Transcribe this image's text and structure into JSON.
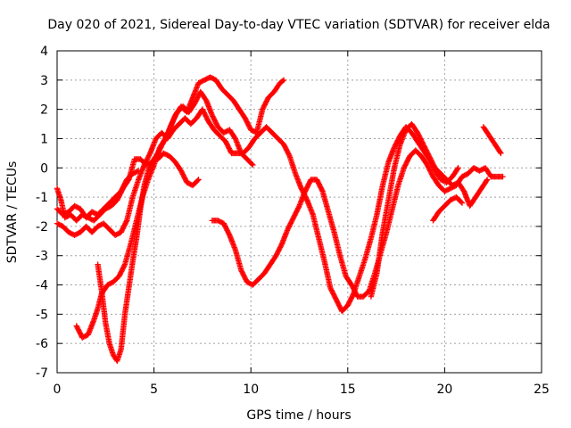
{
  "chart_data": {
    "type": "scatter",
    "title": "Day 020 of 2021, Sidereal Day-to-day VTEC variation (SDTVAR) for receiver elda",
    "xlabel": "GPS time / hours",
    "ylabel": "SDTVAR / TECUs",
    "xlim": [
      0,
      25
    ],
    "ylim": [
      -7,
      4
    ],
    "xticks": [
      "0",
      "5",
      "10",
      "15",
      "20",
      "25"
    ],
    "yticks": [
      "4",
      "3",
      "2",
      "1",
      "0",
      "-1",
      "-2",
      "-3",
      "-4",
      "-5",
      "-6",
      "-7"
    ],
    "grid": true,
    "marker": "plus",
    "color": "#ff0000",
    "series": [
      {
        "points": [
          [
            0,
            -0.7
          ],
          [
            0.2,
            -1.1
          ],
          [
            0.4,
            -1.7
          ],
          [
            0.7,
            -1.6
          ],
          [
            1.0,
            -1.8
          ],
          [
            1.3,
            -1.6
          ],
          [
            1.6,
            -1.7
          ],
          [
            1.9,
            -1.8
          ],
          [
            2.2,
            -1.6
          ],
          [
            2.5,
            -1.4
          ],
          [
            2.8,
            -1.3
          ],
          [
            3.1,
            -1.1
          ],
          [
            3.4,
            -0.7
          ],
          [
            3.7,
            -0.4
          ],
          [
            4.0,
            0.3
          ],
          [
            4.3,
            0.3
          ],
          [
            4.6,
            0.1
          ],
          [
            4.9,
            0.2
          ],
          [
            5.2,
            0.3
          ],
          [
            5.5,
            0.5
          ],
          [
            5.8,
            0.4
          ],
          [
            6.1,
            0.2
          ],
          [
            6.4,
            -0.1
          ],
          [
            6.7,
            -0.5
          ],
          [
            7.0,
            -0.6
          ],
          [
            7.3,
            -0.4
          ]
        ]
      },
      {
        "points": [
          [
            0,
            -1.9
          ],
          [
            0.3,
            -2.0
          ],
          [
            0.6,
            -2.2
          ],
          [
            0.9,
            -2.3
          ],
          [
            1.2,
            -2.2
          ],
          [
            1.5,
            -2.0
          ],
          [
            1.8,
            -2.2
          ],
          [
            2.1,
            -2.0
          ],
          [
            2.4,
            -1.9
          ],
          [
            2.7,
            -2.1
          ],
          [
            3.0,
            -2.3
          ],
          [
            3.3,
            -2.2
          ],
          [
            3.6,
            -1.8
          ],
          [
            3.9,
            -1.0
          ],
          [
            4.2,
            -0.4
          ],
          [
            4.5,
            0.1
          ],
          [
            4.8,
            0.5
          ],
          [
            5.1,
            1.0
          ],
          [
            5.4,
            1.2
          ],
          [
            5.7,
            1.0
          ],
          [
            6.0,
            1.3
          ],
          [
            6.3,
            1.5
          ],
          [
            6.6,
            1.7
          ],
          [
            6.9,
            1.5
          ],
          [
            7.2,
            1.7
          ],
          [
            7.5,
            2.0
          ],
          [
            7.8,
            1.6
          ],
          [
            8.1,
            1.3
          ],
          [
            8.4,
            1.1
          ],
          [
            8.7,
            0.9
          ],
          [
            9.0,
            0.5
          ],
          [
            9.3,
            0.5
          ],
          [
            9.6,
            0.5
          ],
          [
            9.9,
            0.7
          ],
          [
            10.2,
            1.0
          ],
          [
            10.5,
            1.2
          ],
          [
            10.8,
            1.4
          ],
          [
            11.1,
            1.2
          ],
          [
            11.4,
            1.0
          ],
          [
            11.7,
            0.8
          ],
          [
            12.0,
            0.4
          ],
          [
            12.3,
            -0.2
          ],
          [
            12.6,
            -0.7
          ],
          [
            12.9,
            -1.1
          ],
          [
            13.2,
            -1.6
          ],
          [
            13.5,
            -2.4
          ],
          [
            13.8,
            -3.2
          ],
          [
            14.1,
            -4.1
          ],
          [
            14.4,
            -4.5
          ],
          [
            14.7,
            -4.9
          ],
          [
            15.0,
            -4.7
          ],
          [
            15.3,
            -4.3
          ],
          [
            15.6,
            -3.7
          ],
          [
            15.9,
            -3.1
          ],
          [
            16.2,
            -2.4
          ],
          [
            16.5,
            -1.6
          ],
          [
            16.8,
            -0.6
          ],
          [
            17.1,
            0.2
          ],
          [
            17.4,
            0.7
          ],
          [
            17.7,
            1.1
          ],
          [
            18.0,
            1.4
          ],
          [
            18.3,
            1.2
          ],
          [
            18.6,
            0.9
          ],
          [
            18.9,
            0.6
          ],
          [
            19.2,
            0.3
          ],
          [
            19.5,
            -0.1
          ],
          [
            19.8,
            -0.4
          ],
          [
            20.1,
            -0.5
          ],
          [
            20.4,
            -0.3
          ],
          [
            20.7,
            0.0
          ]
        ]
      },
      {
        "points": [
          [
            0,
            -1.4
          ],
          [
            0.3,
            -1.6
          ],
          [
            0.6,
            -1.5
          ],
          [
            0.9,
            -1.3
          ],
          [
            1.2,
            -1.4
          ],
          [
            1.5,
            -1.7
          ],
          [
            1.8,
            -1.5
          ],
          [
            2.1,
            -1.6
          ],
          [
            2.4,
            -1.4
          ],
          [
            2.7,
            -1.2
          ],
          [
            3.0,
            -1.0
          ],
          [
            3.3,
            -0.8
          ],
          [
            3.6,
            -0.4
          ],
          [
            3.9,
            -0.2
          ],
          [
            4.2,
            -0.1
          ]
        ]
      },
      {
        "points": [
          [
            1.0,
            -5.4
          ],
          [
            1.3,
            -5.8
          ],
          [
            1.6,
            -5.7
          ],
          [
            1.9,
            -5.2
          ],
          [
            2.1,
            -4.8
          ],
          [
            2.3,
            -4.3
          ],
          [
            2.6,
            -4.0
          ],
          [
            2.9,
            -3.9
          ],
          [
            3.2,
            -3.7
          ],
          [
            3.5,
            -3.3
          ],
          [
            3.8,
            -2.6
          ],
          [
            4.1,
            -1.8
          ],
          [
            4.4,
            -1.0
          ],
          [
            4.7,
            -0.4
          ],
          [
            5.0,
            0.1
          ],
          [
            5.3,
            0.7
          ],
          [
            5.6,
            1.0
          ],
          [
            5.9,
            1.5
          ],
          [
            6.2,
            1.9
          ],
          [
            6.5,
            2.1
          ],
          [
            6.8,
            1.9
          ],
          [
            7.1,
            2.2
          ],
          [
            7.4,
            2.6
          ],
          [
            7.7,
            2.3
          ],
          [
            8.0,
            1.8
          ],
          [
            8.3,
            1.4
          ],
          [
            8.6,
            1.2
          ],
          [
            8.9,
            1.3
          ],
          [
            9.2,
            1.0
          ],
          [
            9.5,
            0.5
          ],
          [
            9.8,
            0.3
          ],
          [
            10.1,
            0.1
          ]
        ]
      },
      {
        "points": [
          [
            2.1,
            -3.3
          ],
          [
            2.3,
            -4.2
          ],
          [
            2.5,
            -5.3
          ],
          [
            2.7,
            -6.0
          ],
          [
            2.9,
            -6.4
          ],
          [
            3.1,
            -6.6
          ],
          [
            3.3,
            -6.2
          ],
          [
            3.5,
            -5.0
          ],
          [
            3.7,
            -4.1
          ],
          [
            3.9,
            -3.2
          ],
          [
            4.1,
            -2.4
          ],
          [
            4.3,
            -1.4
          ],
          [
            4.5,
            -0.6
          ],
          [
            4.7,
            -0.1
          ],
          [
            4.9,
            0.2
          ],
          [
            5.2,
            0.5
          ],
          [
            5.5,
            0.9
          ],
          [
            5.8,
            1.3
          ],
          [
            6.1,
            1.8
          ],
          [
            6.4,
            2.1
          ],
          [
            6.7,
            1.9
          ],
          [
            7.0,
            2.4
          ],
          [
            7.3,
            2.9
          ],
          [
            7.6,
            3.0
          ],
          [
            7.9,
            3.1
          ],
          [
            8.2,
            3.0
          ],
          [
            8.5,
            2.7
          ],
          [
            8.8,
            2.5
          ],
          [
            9.1,
            2.3
          ],
          [
            9.4,
            2.0
          ],
          [
            9.7,
            1.7
          ],
          [
            10.0,
            1.3
          ],
          [
            10.3,
            1.2
          ],
          [
            10.6,
            2.0
          ],
          [
            10.9,
            2.4
          ],
          [
            11.2,
            2.6
          ],
          [
            11.5,
            2.9
          ],
          [
            11.7,
            3.0
          ]
        ]
      },
      {
        "points": [
          [
            8.0,
            -1.8
          ],
          [
            8.3,
            -1.8
          ],
          [
            8.6,
            -1.9
          ],
          [
            8.9,
            -2.3
          ],
          [
            9.2,
            -2.8
          ],
          [
            9.5,
            -3.5
          ],
          [
            9.8,
            -3.9
          ],
          [
            10.1,
            -4.0
          ],
          [
            10.4,
            -3.8
          ],
          [
            10.7,
            -3.6
          ],
          [
            11.0,
            -3.3
          ],
          [
            11.3,
            -3.0
          ],
          [
            11.6,
            -2.6
          ],
          [
            11.9,
            -2.1
          ],
          [
            12.2,
            -1.7
          ],
          [
            12.5,
            -1.3
          ],
          [
            12.8,
            -0.8
          ],
          [
            13.1,
            -0.4
          ],
          [
            13.4,
            -0.4
          ],
          [
            13.7,
            -0.8
          ],
          [
            14.0,
            -1.5
          ],
          [
            14.3,
            -2.2
          ],
          [
            14.6,
            -3.0
          ],
          [
            14.9,
            -3.7
          ],
          [
            15.2,
            -4.0
          ],
          [
            15.5,
            -4.4
          ],
          [
            15.8,
            -4.4
          ],
          [
            16.1,
            -4.2
          ],
          [
            16.4,
            -3.6
          ],
          [
            16.7,
            -2.9
          ],
          [
            17.0,
            -2.2
          ],
          [
            17.3,
            -1.4
          ],
          [
            17.6,
            -0.6
          ],
          [
            17.9,
            0.0
          ],
          [
            18.2,
            0.4
          ],
          [
            18.5,
            0.6
          ],
          [
            18.8,
            0.4
          ],
          [
            19.1,
            0.1
          ],
          [
            19.4,
            -0.3
          ],
          [
            19.7,
            -0.6
          ],
          [
            20.0,
            -0.8
          ],
          [
            20.3,
            -0.7
          ],
          [
            20.6,
            -0.6
          ],
          [
            20.9,
            -0.3
          ],
          [
            21.2,
            -0.2
          ],
          [
            21.5,
            0.0
          ],
          [
            21.8,
            -0.1
          ],
          [
            22.1,
            0.0
          ],
          [
            22.4,
            -0.3
          ],
          [
            22.7,
            -0.3
          ],
          [
            23.0,
            -0.3
          ]
        ]
      },
      {
        "points": [
          [
            16.2,
            -4.4
          ],
          [
            16.5,
            -3.6
          ],
          [
            16.8,
            -2.2
          ],
          [
            17.1,
            -1.1
          ],
          [
            17.4,
            0.0
          ],
          [
            17.7,
            0.8
          ],
          [
            18.0,
            1.3
          ],
          [
            18.3,
            1.5
          ],
          [
            18.6,
            1.2
          ],
          [
            18.9,
            0.8
          ],
          [
            19.2,
            0.4
          ],
          [
            19.5,
            0.0
          ],
          [
            19.8,
            -0.2
          ],
          [
            20.1,
            -0.4
          ],
          [
            20.4,
            -0.6
          ],
          [
            20.7,
            -0.5
          ],
          [
            21.0,
            -0.8
          ],
          [
            21.3,
            -1.3
          ],
          [
            21.6,
            -1.0
          ],
          [
            21.9,
            -0.7
          ],
          [
            22.2,
            -0.4
          ]
        ]
      },
      {
        "points": [
          [
            19.4,
            -1.8
          ],
          [
            19.7,
            -1.5
          ],
          [
            20.0,
            -1.3
          ],
          [
            20.3,
            -1.1
          ],
          [
            20.6,
            -1.0
          ],
          [
            20.9,
            -1.2
          ]
        ]
      },
      {
        "points": [
          [
            22.0,
            1.4
          ],
          [
            22.3,
            1.1
          ],
          [
            22.6,
            0.8
          ],
          [
            22.9,
            0.5
          ]
        ]
      }
    ]
  }
}
